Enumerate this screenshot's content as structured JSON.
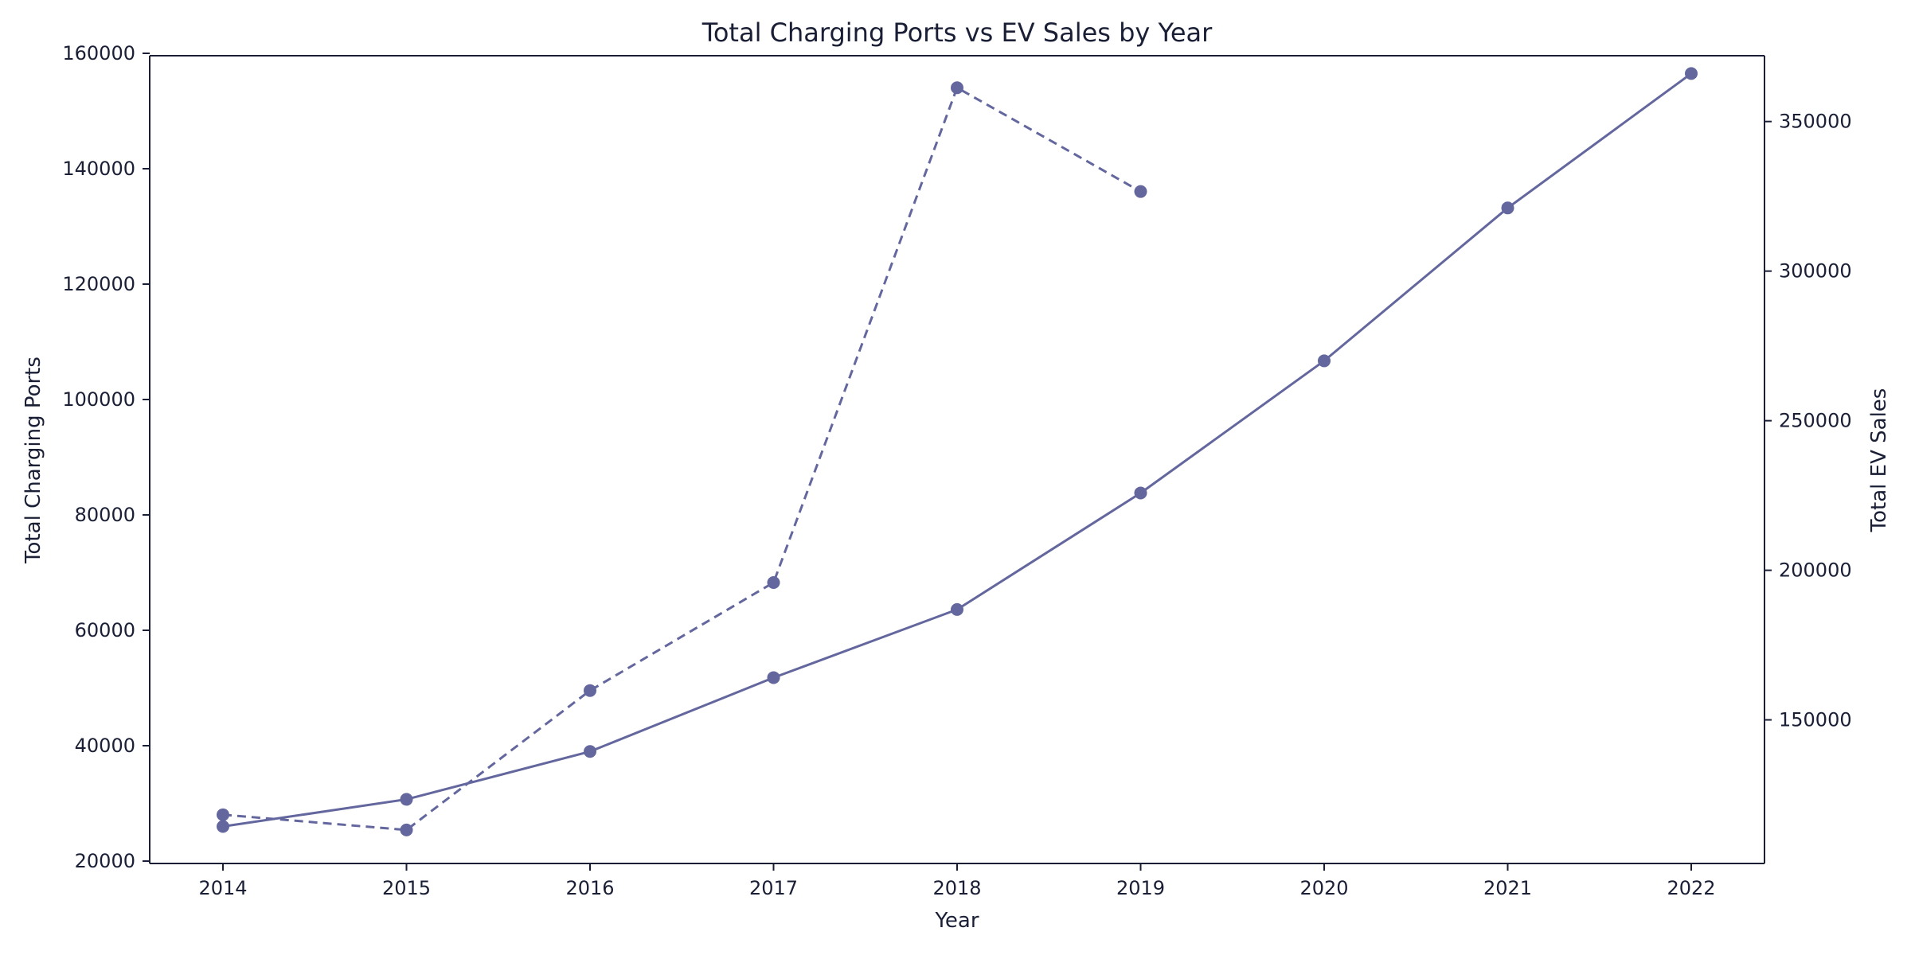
{
  "chart_data": {
    "type": "line",
    "title": "Total Charging Ports vs EV Sales by Year",
    "xlabel": "Year",
    "ylabel_left": "Total Charging Ports",
    "ylabel_right": "Total EV Sales",
    "categories": [
      2014,
      2015,
      2016,
      2017,
      2018,
      2019,
      2020,
      2021,
      2022
    ],
    "ylim_left": [
      20000,
      160000
    ],
    "yticks_left": [
      20000,
      40000,
      60000,
      80000,
      100000,
      120000,
      140000,
      160000
    ],
    "ylim_right": [
      102000,
      372000
    ],
    "yticks_right": [
      150000,
      200000,
      250000,
      300000,
      350000
    ],
    "grid": false,
    "legend": "none",
    "series": [
      {
        "axis": "left",
        "style": "solid",
        "color": "#63679e",
        "x": [
          2014,
          2015,
          2016,
          2017,
          2018,
          2019,
          2020,
          2021,
          2022
        ],
        "values": [
          26000,
          30700,
          39000,
          51800,
          63600,
          83800,
          106700,
          133200,
          156500
        ]
      },
      {
        "axis": "right",
        "style": "dashed",
        "color": "#63679e",
        "x": [
          2014,
          2015,
          2016,
          2017,
          2018,
          2019
        ],
        "values": [
          118300,
          113200,
          159800,
          195900,
          361300,
          326600
        ]
      }
    ]
  }
}
